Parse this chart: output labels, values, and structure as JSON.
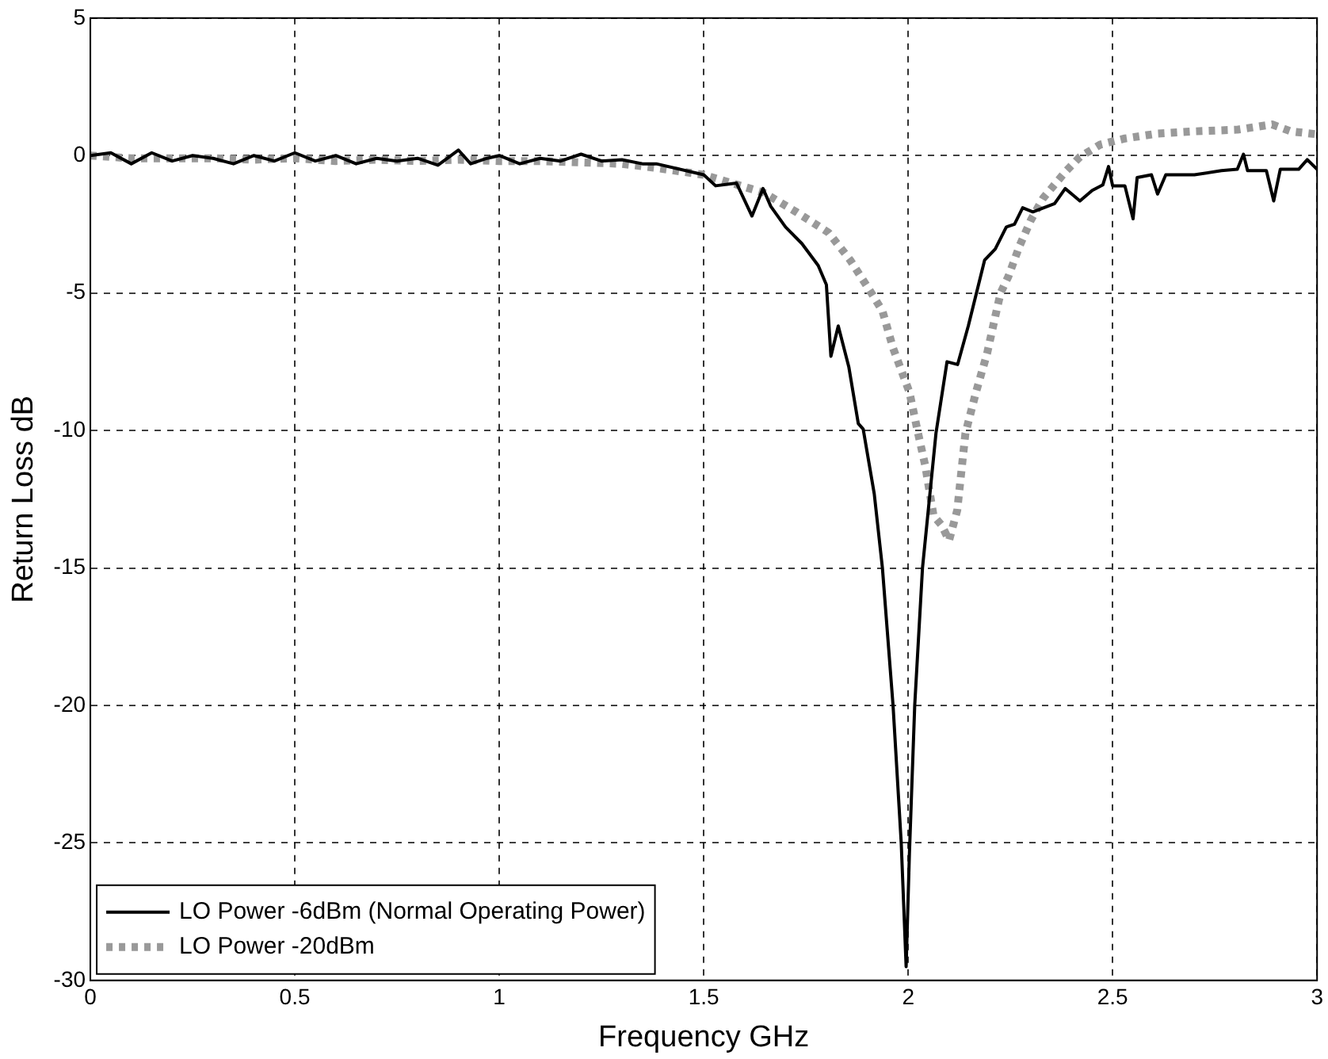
{
  "chart_data": {
    "type": "line",
    "xlabel": "Frequency GHz",
    "ylabel": "Return Loss dB",
    "xlim": [
      0,
      3
    ],
    "ylim": [
      -30,
      5
    ],
    "xticks": [
      0,
      0.5,
      1,
      1.5,
      2,
      2.5,
      3
    ],
    "yticks": [
      5,
      0,
      -5,
      -10,
      -15,
      -20,
      -25,
      -30
    ],
    "grid": true,
    "legend": "bottom left",
    "marker": "none",
    "series": [
      {
        "name": "LO Power -6dBm (Normal Operating Power)",
        "color": "#000000",
        "line_style": "solid",
        "x": [
          0,
          0.05,
          0.1,
          0.15,
          0.2,
          0.25,
          0.3,
          0.35,
          0.4,
          0.45,
          0.5,
          0.55,
          0.6,
          0.65,
          0.7,
          0.75,
          0.8,
          0.85,
          0.9,
          0.93,
          0.97,
          1.0,
          1.05,
          1.1,
          1.15,
          1.2,
          1.25,
          1.3,
          1.35,
          1.384,
          1.5,
          1.529,
          1.58,
          1.618,
          1.645,
          1.664,
          1.7,
          1.74,
          1.78,
          1.8,
          1.811,
          1.829,
          1.855,
          1.878,
          1.89,
          1.917,
          1.937,
          1.963,
          1.983,
          1.995,
          2.003,
          2.016,
          2.035,
          2.068,
          2.095,
          2.121,
          2.147,
          2.187,
          2.213,
          2.24,
          2.26,
          2.28,
          2.305,
          2.358,
          2.384,
          2.404,
          2.42,
          2.45,
          2.476,
          2.49,
          2.5,
          2.53,
          2.55,
          2.56,
          2.595,
          2.61,
          2.63,
          2.7,
          2.766,
          2.805,
          2.82,
          2.83,
          2.876,
          2.894,
          2.91,
          2.955,
          2.976,
          3.0
        ],
        "values": [
          0,
          0.1,
          -0.3,
          0.1,
          -0.2,
          0,
          -0.1,
          -0.3,
          0,
          -0.2,
          0.1,
          -0.2,
          0,
          -0.3,
          -0.1,
          -0.2,
          -0.1,
          -0.35,
          0.2,
          -0.3,
          -0.1,
          0,
          -0.3,
          -0.1,
          -0.2,
          0.05,
          -0.2,
          -0.15,
          -0.3,
          -0.3,
          -0.7,
          -1.1,
          -1.0,
          -2.2,
          -1.2,
          -1.85,
          -2.6,
          -3.2,
          -4.0,
          -4.7,
          -7.3,
          -6.2,
          -7.7,
          -9.75,
          -9.95,
          -12.3,
          -15,
          -20,
          -25,
          -29.5,
          -25.4,
          -20,
          -15,
          -10.1,
          -7.5,
          -7.6,
          -6.2,
          -3.8,
          -3.4,
          -2.6,
          -2.5,
          -1.9,
          -2.05,
          -1.75,
          -1.2,
          -1.45,
          -1.65,
          -1.27,
          -1.07,
          -0.4,
          -1.1,
          -1.1,
          -2.3,
          -0.8,
          -0.7,
          -1.4,
          -0.7,
          -0.7,
          -0.55,
          -0.5,
          0.05,
          -0.55,
          -0.55,
          -1.65,
          -0.5,
          -0.5,
          -0.15,
          -0.5
        ]
      },
      {
        "name": "LO Power -20dBm",
        "color": "#999999",
        "line_style": "dotted",
        "x": [
          0,
          0.1,
          0.2,
          0.3,
          0.4,
          0.5,
          0.6,
          0.7,
          0.8,
          0.9,
          1.0,
          1.1,
          1.2,
          1.3,
          1.384,
          1.5,
          1.647,
          1.726,
          1.805,
          1.858,
          1.91,
          1.937,
          1.963,
          1.983,
          2.003,
          2.022,
          2.042,
          2.062,
          2.082,
          2.1,
          2.12,
          2.14,
          2.166,
          2.193,
          2.213,
          2.226,
          2.245,
          2.272,
          2.3,
          2.33,
          2.384,
          2.42,
          2.47,
          2.53,
          2.61,
          2.7,
          2.805,
          2.89,
          2.936,
          2.995
        ],
        "values": [
          0,
          -0.1,
          -0.1,
          -0.1,
          -0.15,
          -0.1,
          -0.2,
          -0.15,
          -0.2,
          -0.15,
          -0.2,
          -0.2,
          -0.25,
          -0.3,
          -0.45,
          -0.7,
          -1.35,
          -2.05,
          -2.8,
          -3.8,
          -5,
          -5.65,
          -7.0,
          -7.8,
          -8.6,
          -9.95,
          -11.3,
          -13.1,
          -13.45,
          -14.0,
          -12.9,
          -10.1,
          -8.6,
          -7.2,
          -5.85,
          -5,
          -4.4,
          -3.3,
          -2.35,
          -1.55,
          -0.6,
          -0.05,
          0.4,
          0.62,
          0.8,
          0.88,
          0.94,
          1.13,
          0.88,
          0.78
        ]
      }
    ]
  }
}
